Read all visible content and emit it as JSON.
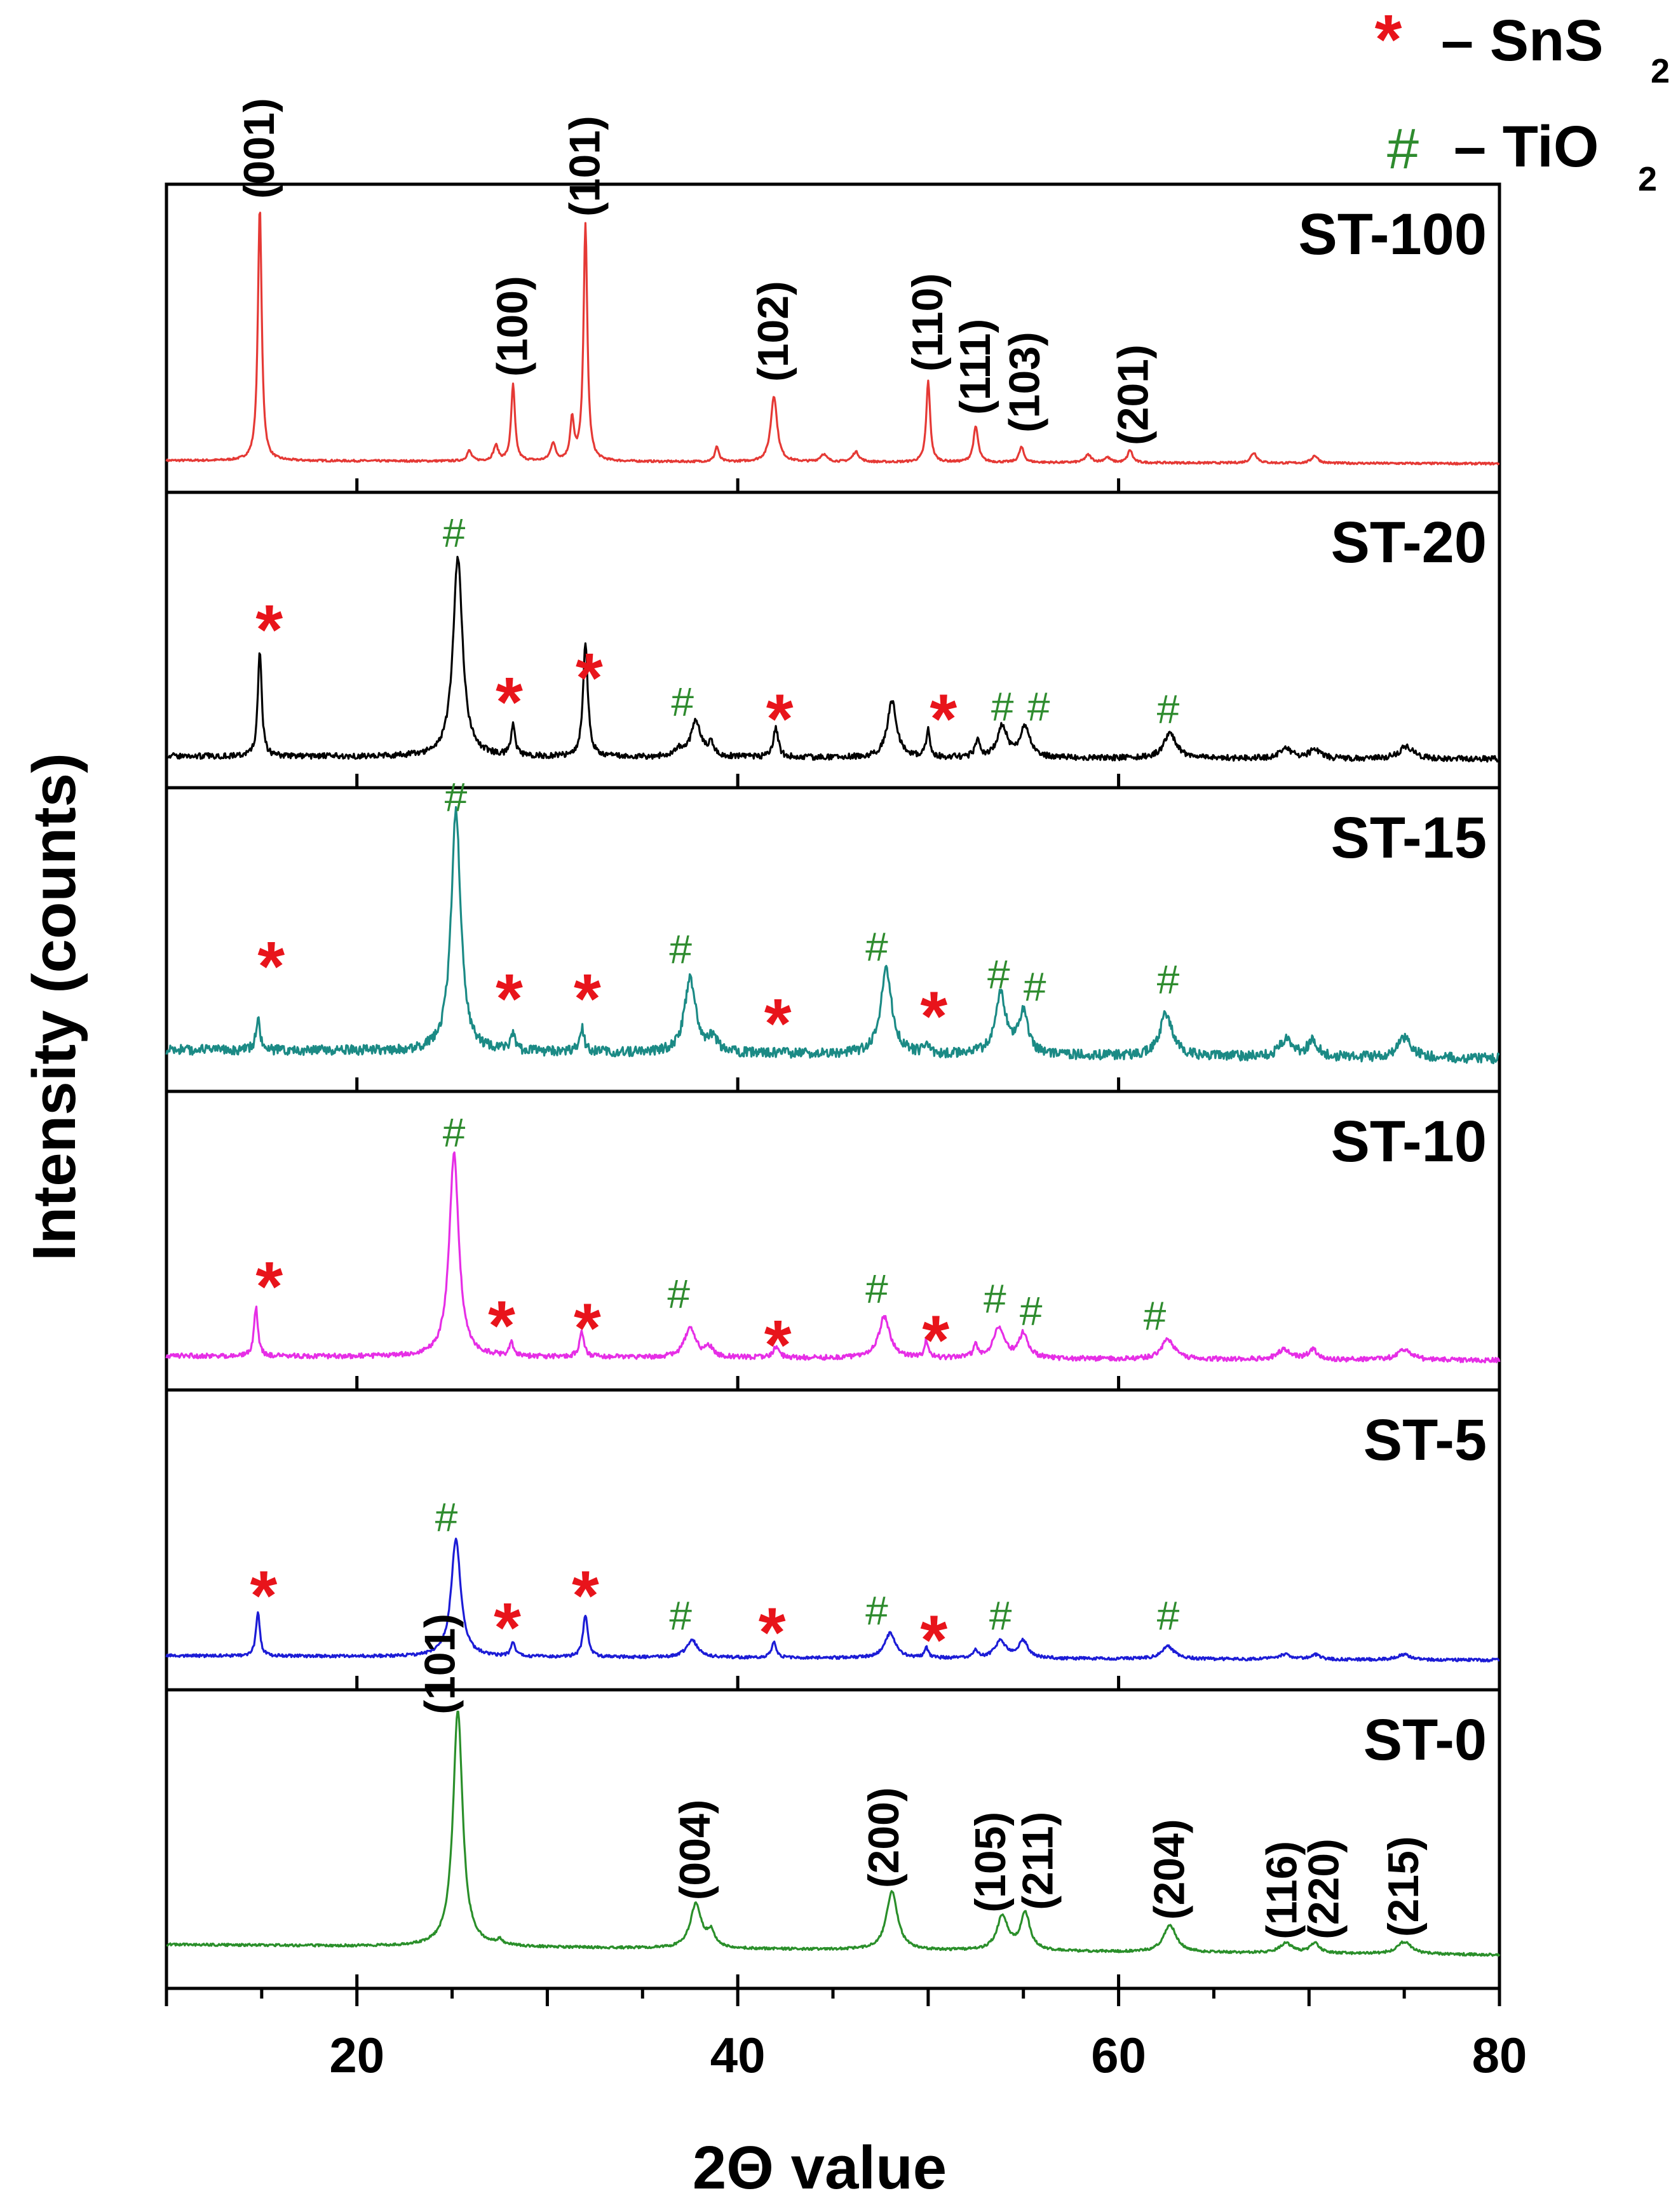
{
  "chart_data": {
    "type": "line",
    "title": "",
    "xlabel": "2Θ value",
    "ylabel": "Intensity (counts)",
    "xlim": [
      10,
      80
    ],
    "x_ticks": [
      "20",
      "40",
      "60",
      "80"
    ],
    "legend": [
      {
        "symbol": "*",
        "label": "– SnS",
        "sub": "2",
        "color": "#e8141b"
      },
      {
        "symbol": "#",
        "label": "– TiO",
        "sub": "2",
        "color": "#2e8b2e"
      }
    ],
    "series": [
      {
        "name": "ST-100",
        "color": "#e53935",
        "noise": 0.004,
        "baseline": 0.02,
        "peaks": [
          [
            14.9,
            1.0,
            0.12
          ],
          [
            25.9,
            0.04,
            0.15
          ],
          [
            27.3,
            0.06,
            0.15
          ],
          [
            28.2,
            0.3,
            0.12
          ],
          [
            30.3,
            0.07,
            0.15
          ],
          [
            31.3,
            0.16,
            0.12
          ],
          [
            32.0,
            0.93,
            0.12
          ],
          [
            38.9,
            0.06,
            0.12
          ],
          [
            41.9,
            0.26,
            0.2
          ],
          [
            44.5,
            0.03,
            0.2
          ],
          [
            46.2,
            0.04,
            0.2
          ],
          [
            50.0,
            0.32,
            0.12
          ],
          [
            52.5,
            0.14,
            0.15
          ],
          [
            54.9,
            0.06,
            0.15
          ],
          [
            58.4,
            0.03,
            0.2
          ],
          [
            59.4,
            0.02,
            0.2
          ],
          [
            60.6,
            0.05,
            0.15
          ],
          [
            67.1,
            0.04,
            0.2
          ],
          [
            70.3,
            0.03,
            0.2
          ]
        ],
        "annotations": [
          {
            "text": "(001)",
            "x": 14.9,
            "y": 1.02,
            "kind": "hkl"
          },
          {
            "text": "(100)",
            "x": 28.2,
            "y": 0.32,
            "kind": "hkl"
          },
          {
            "text": "(101)",
            "x": 32.0,
            "y": 0.95,
            "kind": "hkl"
          },
          {
            "text": "(102)",
            "x": 41.9,
            "y": 0.3,
            "kind": "hkl"
          },
          {
            "text": "(110)",
            "x": 50.0,
            "y": 0.34,
            "kind": "hkl"
          },
          {
            "text": "(111)",
            "x": 52.5,
            "y": 0.17,
            "kind": "hkl"
          },
          {
            "text": "(103)",
            "x": 55.1,
            "y": 0.1,
            "kind": "hkl"
          },
          {
            "text": "(201)",
            "x": 60.8,
            "y": 0.05,
            "kind": "hkl"
          }
        ]
      },
      {
        "name": "ST-20",
        "color": "#000000",
        "noise": 0.012,
        "baseline": 0.02,
        "peaks": [
          [
            14.9,
            0.44,
            0.12
          ],
          [
            25.3,
            0.83,
            0.3
          ],
          [
            28.2,
            0.13,
            0.12
          ],
          [
            32.0,
            0.47,
            0.15
          ],
          [
            36.9,
            0.03,
            0.3
          ],
          [
            37.8,
            0.15,
            0.3
          ],
          [
            38.6,
            0.05,
            0.2
          ],
          [
            42.0,
            0.12,
            0.15
          ],
          [
            48.1,
            0.23,
            0.3
          ],
          [
            50.0,
            0.11,
            0.12
          ],
          [
            52.6,
            0.07,
            0.15
          ],
          [
            53.9,
            0.13,
            0.3
          ],
          [
            55.1,
            0.13,
            0.3
          ],
          [
            62.7,
            0.1,
            0.4
          ],
          [
            68.8,
            0.04,
            0.4
          ],
          [
            70.3,
            0.04,
            0.3
          ],
          [
            75.1,
            0.05,
            0.45
          ]
        ],
        "annotations": [
          {
            "text": "*",
            "x": 15.4,
            "y": 0.55,
            "kind": "sns2"
          },
          {
            "text": "#",
            "x": 25.1,
            "y": 0.85,
            "kind": "tio2"
          },
          {
            "text": "*",
            "x": 28.0,
            "y": 0.25,
            "kind": "sns2"
          },
          {
            "text": "*",
            "x": 32.2,
            "y": 0.35,
            "kind": "sns2"
          },
          {
            "text": "#",
            "x": 37.1,
            "y": 0.15,
            "kind": "tio2"
          },
          {
            "text": "*",
            "x": 42.2,
            "y": 0.18,
            "kind": "sns2"
          },
          {
            "text": "*",
            "x": 50.8,
            "y": 0.18,
            "kind": "sns2"
          },
          {
            "text": "#",
            "x": 53.9,
            "y": 0.13,
            "kind": "tio2"
          },
          {
            "text": "#",
            "x": 55.8,
            "y": 0.13,
            "kind": "tio2"
          },
          {
            "text": "#",
            "x": 62.6,
            "y": 0.12,
            "kind": "tio2"
          }
        ]
      },
      {
        "name": "ST-15",
        "color": "#1b8a85",
        "noise": 0.02,
        "baseline": 0.06,
        "peaks": [
          [
            14.8,
            0.13,
            0.12
          ],
          [
            25.2,
            0.97,
            0.3
          ],
          [
            28.2,
            0.08,
            0.12
          ],
          [
            31.8,
            0.1,
            0.15
          ],
          [
            37.5,
            0.3,
            0.35
          ],
          [
            38.7,
            0.06,
            0.25
          ],
          [
            47.8,
            0.34,
            0.35
          ],
          [
            49.9,
            0.05,
            0.12
          ],
          [
            53.8,
            0.24,
            0.35
          ],
          [
            55.0,
            0.16,
            0.3
          ],
          [
            62.5,
            0.17,
            0.4
          ],
          [
            68.8,
            0.07,
            0.4
          ],
          [
            70.2,
            0.07,
            0.3
          ],
          [
            75.0,
            0.08,
            0.45
          ]
        ],
        "annotations": [
          {
            "text": "*",
            "x": 15.5,
            "y": 0.4,
            "kind": "sns2"
          },
          {
            "text": "#",
            "x": 25.2,
            "y": 0.98,
            "kind": "tio2"
          },
          {
            "text": "*",
            "x": 28.0,
            "y": 0.27,
            "kind": "sns2"
          },
          {
            "text": "*",
            "x": 32.1,
            "y": 0.27,
            "kind": "sns2"
          },
          {
            "text": "#",
            "x": 37.0,
            "y": 0.37,
            "kind": "tio2"
          },
          {
            "text": "*",
            "x": 42.1,
            "y": 0.17,
            "kind": "sns2"
          },
          {
            "text": "#",
            "x": 47.3,
            "y": 0.38,
            "kind": "tio2"
          },
          {
            "text": "*",
            "x": 50.3,
            "y": 0.2,
            "kind": "sns2"
          },
          {
            "text": "#",
            "x": 53.7,
            "y": 0.27,
            "kind": "tio2"
          },
          {
            "text": "#",
            "x": 55.6,
            "y": 0.22,
            "kind": "tio2"
          },
          {
            "text": "#",
            "x": 62.6,
            "y": 0.25,
            "kind": "tio2"
          }
        ]
      },
      {
        "name": "ST-10",
        "color": "#e62ee6",
        "noise": 0.01,
        "baseline": 0.03,
        "peaks": [
          [
            14.7,
            0.2,
            0.12
          ],
          [
            25.1,
            0.83,
            0.3
          ],
          [
            28.1,
            0.06,
            0.12
          ],
          [
            31.8,
            0.1,
            0.15
          ],
          [
            37.5,
            0.12,
            0.35
          ],
          [
            38.5,
            0.04,
            0.25
          ],
          [
            42.0,
            0.04,
            0.2
          ],
          [
            47.7,
            0.17,
            0.35
          ],
          [
            49.9,
            0.07,
            0.12
          ],
          [
            52.5,
            0.05,
            0.15
          ],
          [
            53.7,
            0.12,
            0.35
          ],
          [
            55.0,
            0.1,
            0.3
          ],
          [
            62.6,
            0.08,
            0.4
          ],
          [
            68.7,
            0.04,
            0.4
          ],
          [
            70.2,
            0.04,
            0.3
          ],
          [
            75.0,
            0.04,
            0.45
          ]
        ],
        "annotations": [
          {
            "text": "*",
            "x": 15.4,
            "y": 0.32,
            "kind": "sns2"
          },
          {
            "text": "#",
            "x": 25.1,
            "y": 0.85,
            "kind": "tio2"
          },
          {
            "text": "*",
            "x": 27.6,
            "y": 0.16,
            "kind": "sns2"
          },
          {
            "text": "*",
            "x": 32.1,
            "y": 0.15,
            "kind": "sns2"
          },
          {
            "text": "#",
            "x": 36.9,
            "y": 0.19,
            "kind": "tio2"
          },
          {
            "text": "*",
            "x": 42.1,
            "y": 0.08,
            "kind": "sns2"
          },
          {
            "text": "#",
            "x": 47.3,
            "y": 0.21,
            "kind": "tio2"
          },
          {
            "text": "*",
            "x": 50.4,
            "y": 0.1,
            "kind": "sns2"
          },
          {
            "text": "#",
            "x": 53.5,
            "y": 0.17,
            "kind": "tio2"
          },
          {
            "text": "#",
            "x": 55.4,
            "y": 0.12,
            "kind": "tio2"
          },
          {
            "text": "#",
            "x": 61.9,
            "y": 0.1,
            "kind": "tio2"
          }
        ]
      },
      {
        "name": "ST-5",
        "color": "#1c1cd6",
        "noise": 0.006,
        "baseline": 0.03,
        "peaks": [
          [
            14.8,
            0.18,
            0.12
          ],
          [
            25.2,
            0.48,
            0.3
          ],
          [
            28.2,
            0.06,
            0.12
          ],
          [
            32.0,
            0.17,
            0.15
          ],
          [
            37.6,
            0.07,
            0.35
          ],
          [
            41.9,
            0.06,
            0.15
          ],
          [
            48.0,
            0.1,
            0.35
          ],
          [
            49.9,
            0.04,
            0.12
          ],
          [
            52.5,
            0.03,
            0.15
          ],
          [
            53.8,
            0.07,
            0.35
          ],
          [
            55.0,
            0.07,
            0.3
          ],
          [
            62.6,
            0.05,
            0.4
          ],
          [
            68.7,
            0.02,
            0.4
          ],
          [
            70.3,
            0.02,
            0.3
          ],
          [
            75.0,
            0.02,
            0.45
          ]
        ],
        "annotations": [
          {
            "text": "*",
            "x": 15.1,
            "y": 0.28,
            "kind": "sns2"
          },
          {
            "text": "#",
            "x": 24.7,
            "y": 0.5,
            "kind": "tio2"
          },
          {
            "text": "*",
            "x": 27.9,
            "y": 0.15,
            "kind": "sns2"
          },
          {
            "text": "*",
            "x": 32.0,
            "y": 0.28,
            "kind": "sns2"
          },
          {
            "text": "#",
            "x": 37.0,
            "y": 0.1,
            "kind": "tio2"
          },
          {
            "text": "*",
            "x": 41.8,
            "y": 0.13,
            "kind": "sns2"
          },
          {
            "text": "#",
            "x": 47.3,
            "y": 0.12,
            "kind": "tio2"
          },
          {
            "text": "*",
            "x": 50.3,
            "y": 0.1,
            "kind": "sns2"
          },
          {
            "text": "#",
            "x": 53.8,
            "y": 0.1,
            "kind": "tio2"
          },
          {
            "text": "#",
            "x": 62.6,
            "y": 0.1,
            "kind": "tio2"
          }
        ]
      },
      {
        "name": "ST-0",
        "color": "#2a8f2a",
        "noise": 0.005,
        "baseline": 0.07,
        "peaks": [
          [
            25.3,
            0.97,
            0.3
          ],
          [
            27.5,
            0.02,
            0.2
          ],
          [
            37.8,
            0.18,
            0.35
          ],
          [
            38.6,
            0.06,
            0.25
          ],
          [
            48.1,
            0.24,
            0.35
          ],
          [
            53.9,
            0.14,
            0.35
          ],
          [
            55.1,
            0.15,
            0.3
          ],
          [
            62.7,
            0.11,
            0.4
          ],
          [
            68.8,
            0.04,
            0.4
          ],
          [
            70.3,
            0.04,
            0.3
          ],
          [
            75.0,
            0.05,
            0.45
          ]
        ],
        "annotations": [
          {
            "text": "(101)",
            "x": 24.4,
            "y": 0.98,
            "kind": "hkl"
          },
          {
            "text": "(004)",
            "x": 37.8,
            "y": 0.22,
            "kind": "hkl"
          },
          {
            "text": "(200)",
            "x": 47.7,
            "y": 0.27,
            "kind": "hkl"
          },
          {
            "text": "(105)",
            "x": 53.3,
            "y": 0.17,
            "kind": "hkl"
          },
          {
            "text": "(211)",
            "x": 55.8,
            "y": 0.18,
            "kind": "hkl"
          },
          {
            "text": "(204)",
            "x": 62.7,
            "y": 0.14,
            "kind": "hkl"
          },
          {
            "text": "(116)",
            "x": 68.6,
            "y": 0.06,
            "kind": "hkl"
          },
          {
            "text": "(220)",
            "x": 70.8,
            "y": 0.06,
            "kind": "hkl"
          },
          {
            "text": "(215)",
            "x": 75.0,
            "y": 0.07,
            "kind": "hkl"
          }
        ]
      }
    ]
  }
}
